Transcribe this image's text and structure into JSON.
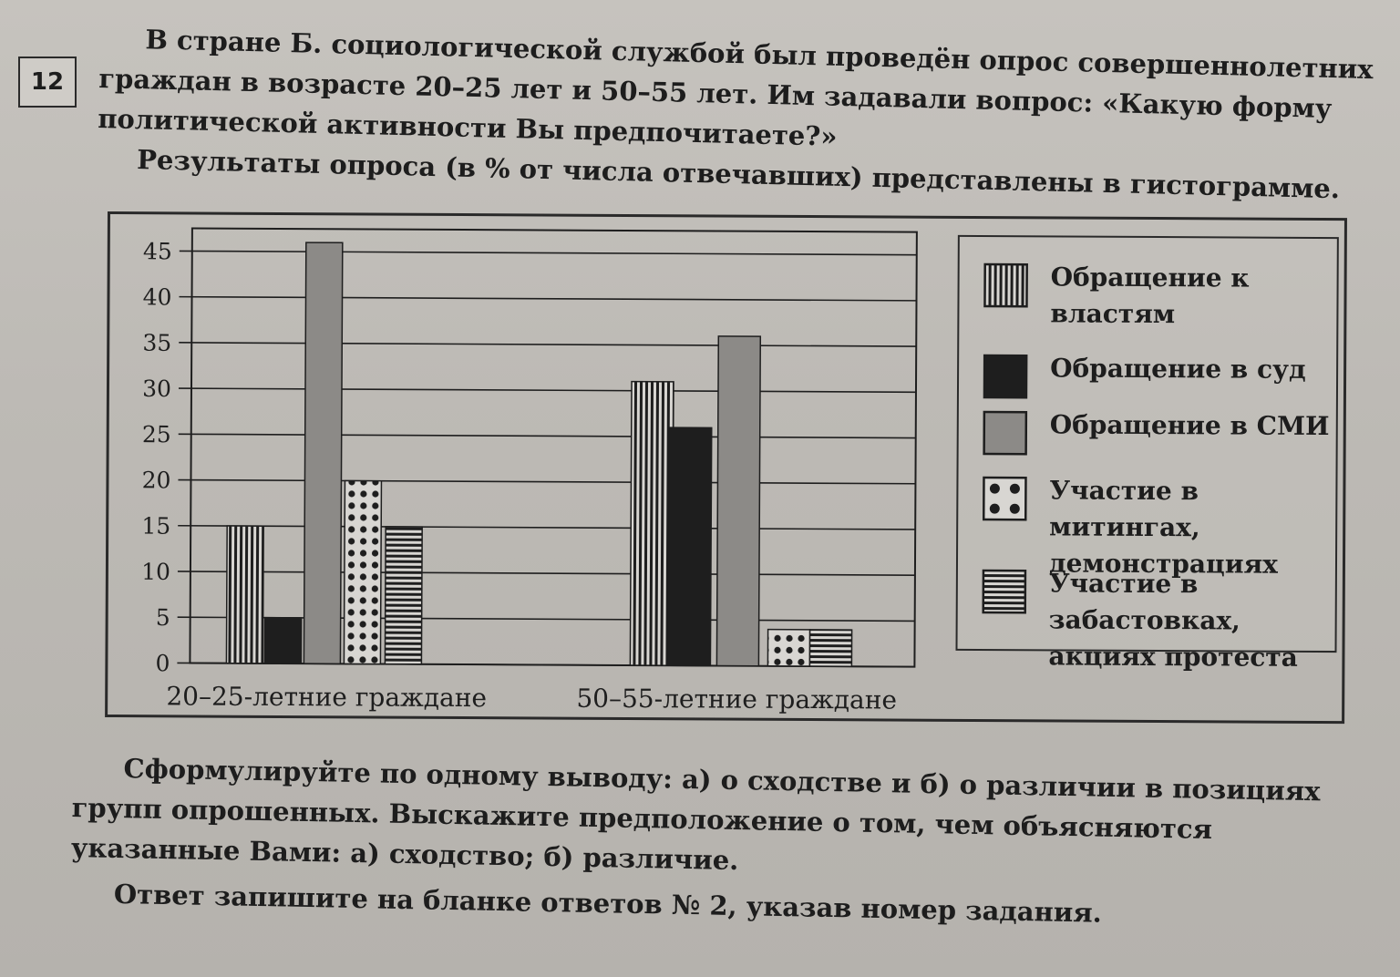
{
  "task": {
    "number": "12",
    "intro": "В стране Б. социологической службой был проведён опрос совершеннолетних граждан в возрасте 20–25 лет и 50–55 лет. Им задавали вопрос: «Какую форму политической активности Вы предпочитаете?»",
    "results_line": "Результаты опроса (в % от числа отвечавших) представлены в гистограмме.",
    "question": "Сформулируйте по одному выводу: а) о сходстве и б) о различии в позициях групп опрошенных. Выскажите предположение о том, чем объясняются указанные Вами: а) сходство; б) различие.",
    "answer_instruction": "Ответ запишите на бланке ответов № 2, указав номер задания."
  },
  "chart_data": {
    "type": "bar",
    "title": "",
    "xlabel": "",
    "ylabel": "",
    "ylim": [
      0,
      45
    ],
    "yticks": [
      0,
      5,
      10,
      15,
      20,
      25,
      30,
      35,
      40,
      45
    ],
    "grid": true,
    "legend_position": "right",
    "categories": [
      "20–25-летние граждане",
      "50–55-летние граждане"
    ],
    "series": [
      {
        "name": "Обращение к властям",
        "pattern": "vertical-stripes",
        "values": [
          15,
          31
        ]
      },
      {
        "name": "Обращение в суд",
        "pattern": "solid-black",
        "values": [
          5,
          26
        ]
      },
      {
        "name": "Обращение в СМИ",
        "pattern": "solid-gray",
        "values": [
          46,
          36
        ]
      },
      {
        "name": "Участие в митингах, демонстрациях",
        "pattern": "dots",
        "values": [
          20,
          4
        ]
      },
      {
        "name": "Участие в забастовках, акциях протеста",
        "pattern": "horizontal-stripes",
        "values": [
          15,
          4
        ]
      }
    ],
    "colors": {
      "ink": "#1e1e1e",
      "gray": "#8c8a87",
      "paper": "#d8d6d2"
    }
  }
}
